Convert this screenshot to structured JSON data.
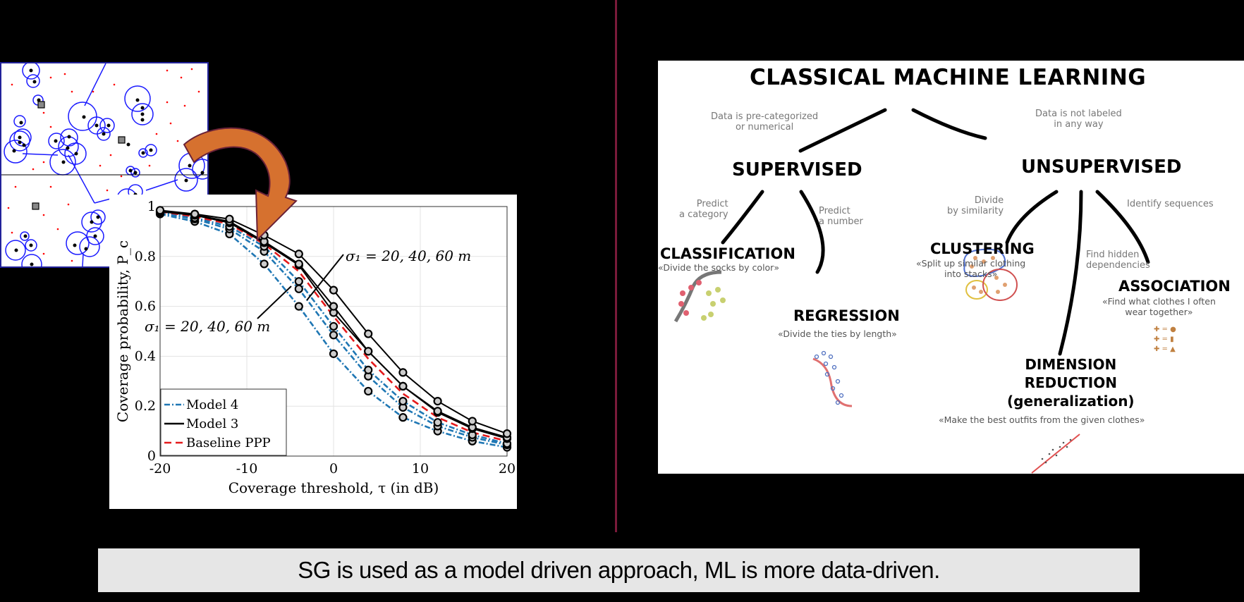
{
  "caption": {
    "text": "SG is used as a model driven approach, ML is more data-driven."
  },
  "voronoi_figure": {
    "description": "Voronoi tessellation of clustered points",
    "colors": {
      "cells": "#1a1aff",
      "points": "#000000",
      "users": "#ff0000"
    }
  },
  "arrow": {
    "color": "#d6712f",
    "outline": "#6a2238"
  },
  "divider": {
    "color": "#7a1a3a"
  },
  "chart_data": {
    "type": "line",
    "title": "",
    "xlabel": "Coverage threshold, τ (in dB)",
    "ylabel": "Coverage probability, P_c",
    "xlim": [
      -20,
      20
    ],
    "ylim": [
      0,
      1
    ],
    "xticks": [
      "-20",
      "-10",
      "0",
      "10",
      "20"
    ],
    "yticks": [
      "0",
      "0.2",
      "0.4",
      "0.6",
      "0.8",
      "1"
    ],
    "grid": true,
    "legend_position": "lower left",
    "x": [
      -20,
      -16,
      -12,
      -8,
      -4,
      0,
      4,
      8,
      12,
      16,
      20
    ],
    "series": [
      {
        "name": "Model 4",
        "style": "dash-dot",
        "color": "#1f77b4",
        "sigma": 20,
        "values": [
          0.97,
          0.94,
          0.89,
          0.77,
          0.6,
          0.41,
          0.26,
          0.155,
          0.1,
          0.06,
          0.035
        ]
      },
      {
        "name": "Model 4",
        "style": "dash-dot",
        "color": "#1f77b4",
        "sigma": 40,
        "values": [
          0.975,
          0.95,
          0.91,
          0.82,
          0.67,
          0.485,
          0.32,
          0.195,
          0.12,
          0.075,
          0.045
        ]
      },
      {
        "name": "Model 4",
        "style": "dash-dot",
        "color": "#1f77b4",
        "sigma": 60,
        "values": [
          0.978,
          0.955,
          0.92,
          0.84,
          0.7,
          0.52,
          0.345,
          0.22,
          0.135,
          0.085,
          0.05
        ]
      },
      {
        "name": "Baseline PPP",
        "style": "dashed",
        "color": "#e41a1c",
        "values": [
          0.98,
          0.96,
          0.93,
          0.85,
          0.74,
          0.56,
          0.39,
          0.25,
          0.155,
          0.095,
          0.06
        ]
      },
      {
        "name": "Model 3",
        "style": "solid",
        "color": "#000000",
        "sigma": 20,
        "values": [
          0.98,
          0.965,
          0.935,
          0.855,
          0.765,
          0.575,
          0.42,
          0.28,
          0.175,
          0.11,
          0.07
        ]
      },
      {
        "name": "Model 3",
        "style": "solid",
        "color": "#000000",
        "sigma": 40,
        "values": [
          0.982,
          0.967,
          0.94,
          0.86,
          0.77,
          0.6,
          0.42,
          0.28,
          0.18,
          0.115,
          0.075
        ]
      },
      {
        "name": "Model 3",
        "style": "solid",
        "color": "#000000",
        "sigma": 60,
        "values": [
          0.985,
          0.97,
          0.95,
          0.885,
          0.81,
          0.665,
          0.49,
          0.335,
          0.22,
          0.14,
          0.09
        ]
      }
    ],
    "legend": [
      "Model 4",
      "Model 3",
      "Baseline PPP"
    ],
    "annotations": [
      {
        "text": "σ₁ = 20, 40, 60 m",
        "position": "upper right",
        "arrow_to": "Model 3 curves"
      },
      {
        "text": "σ₁ = 20, 40, 60 m",
        "position": "lower left",
        "arrow_to": "Model 4 curves"
      }
    ]
  },
  "ml_diagram": {
    "title": "CLASSICAL MACHINE LEARNING",
    "supervised": {
      "label": "SUPERVISED",
      "edge_note": [
        "Data is pre-categorized",
        "or numerical"
      ],
      "classification": {
        "label": "CLASSIFICATION",
        "edge_note": [
          "Predict",
          "a category"
        ],
        "example": "«Divide the socks by color»"
      },
      "regression": {
        "label": "REGRESSION",
        "edge_note": [
          "Predict",
          "a number"
        ],
        "example": "«Divide the ties by length»"
      }
    },
    "unsupervised": {
      "label": "UNSUPERVISED",
      "edge_note": [
        "Data is not labeled",
        "in any way"
      ],
      "clustering": {
        "label": "CLUSTERING",
        "edge_note": [
          "Divide",
          "by similarity"
        ],
        "example": [
          "«Split up similar clothing",
          "into stacks»"
        ]
      },
      "dimension_reduction": {
        "label": [
          "DIMENSION",
          "REDUCTION",
          "(generalization)"
        ],
        "edge_note": [
          "Find hidden",
          "dependencies"
        ],
        "example": "«Make the best outfits from the given clothes»"
      },
      "association": {
        "label": "ASSOCIATION",
        "edge_note": [
          "Identify sequences"
        ],
        "example": [
          "«Find what clothes I often",
          "wear together»"
        ]
      }
    }
  }
}
